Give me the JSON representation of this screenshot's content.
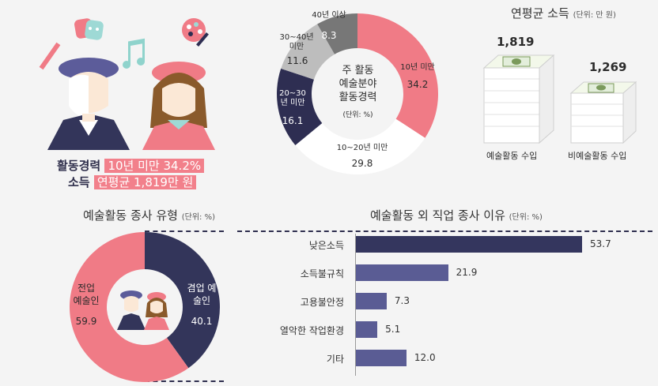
{
  "summary": {
    "career_label": "활동경력",
    "career_value": "10년 미만 34.2%",
    "income_label": "소득",
    "income_value": "연평균 1,819만 원"
  },
  "income": {
    "title": "연평균 소득",
    "unit": "(단위: 만 원)",
    "items": [
      {
        "label": "예술활동 수입",
        "value": "1,819"
      },
      {
        "label": "비예술활동 수입",
        "value": "1,269"
      }
    ]
  },
  "donut_career": {
    "center": [
      "주 활동",
      "예술분야",
      "활동경력"
    ],
    "unit": "(단위: %)",
    "segments": [
      {
        "label": "10년 미만",
        "value": "34.2",
        "color": "#f07b86"
      },
      {
        "label": "10~20년 미만",
        "value": "29.8",
        "color": "#ffffff"
      },
      {
        "label": "20~30년 미만",
        "value": "16.1",
        "color": "#2e2e52"
      },
      {
        "label": "30~40년 미만",
        "value": "11.6",
        "color": "#bdbdbd"
      },
      {
        "label": "40년 이상",
        "value": "8.3",
        "color": "#777777"
      }
    ]
  },
  "type_chart": {
    "title": "예술활동 종사 유형",
    "unit": "(단위: %)",
    "segments": [
      {
        "label": "전업 예술인",
        "value": "59.9",
        "color": "#f07b86"
      },
      {
        "label": "겸업 예술인",
        "value": "40.1",
        "color": "#33355a"
      }
    ]
  },
  "bar_chart": {
    "title": "예술활동 외 직업 종사 이유",
    "unit": "(단위: %)",
    "bar_color": "#5a5c94",
    "first_bar_color": "#34365e"
  },
  "chart_data": [
    {
      "type": "pie",
      "title": "주 활동 예술분야 활동경력",
      "unit": "%",
      "categories": [
        "10년 미만",
        "10~20년 미만",
        "20~30년 미만",
        "30~40년 미만",
        "40년 이상"
      ],
      "values": [
        34.2,
        29.8,
        16.1,
        11.6,
        8.3
      ]
    },
    {
      "type": "bar",
      "title": "연평균 소득",
      "unit": "만 원",
      "categories": [
        "예술활동 수입",
        "비예술활동 수입"
      ],
      "values": [
        1819,
        1269
      ]
    },
    {
      "type": "pie",
      "title": "예술활동 종사 유형",
      "unit": "%",
      "categories": [
        "전업 예술인",
        "겸업 예술인"
      ],
      "values": [
        59.9,
        40.1
      ]
    },
    {
      "type": "bar",
      "title": "예술활동 외 직업 종사 이유",
      "unit": "%",
      "orientation": "horizontal",
      "categories": [
        "낮은소득",
        "소득불규칙",
        "고용불안정",
        "열악한 작업환경",
        "기타"
      ],
      "values": [
        53.7,
        21.9,
        7.3,
        5.1,
        12.0
      ],
      "xlim": [
        0,
        60
      ]
    }
  ]
}
